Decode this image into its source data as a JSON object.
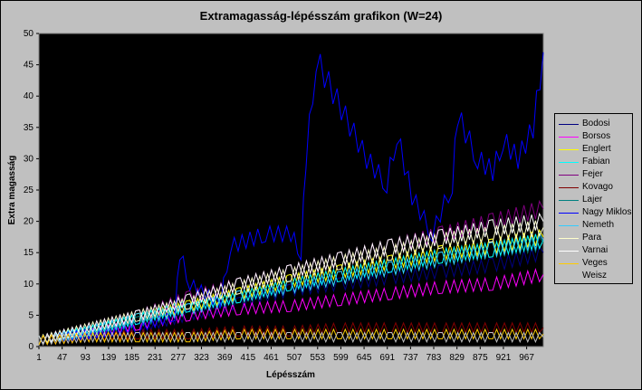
{
  "chart_data": {
    "type": "line",
    "title": "Extramagasság-lépésszám grafikon (W=24)",
    "xlabel": "Lépésszám",
    "ylabel": "Extra magasság",
    "ylim": [
      0,
      50
    ],
    "yticks": [
      "0",
      "5",
      "10",
      "15",
      "20",
      "25",
      "30",
      "35",
      "40",
      "45",
      "50"
    ],
    "xticks": [
      "1",
      "47",
      "93",
      "139",
      "185",
      "231",
      "277",
      "323",
      "369",
      "415",
      "461",
      "507",
      "553",
      "599",
      "645",
      "691",
      "737",
      "783",
      "829",
      "875",
      "921",
      "967"
    ],
    "xrange": [
      1,
      1000
    ],
    "grid": false,
    "legend_position": "right",
    "series": [
      {
        "name": "Bodosi",
        "color": "#000080",
        "points": [
          [
            1,
            1
          ],
          [
            100,
            2
          ],
          [
            200,
            3
          ],
          [
            300,
            5
          ],
          [
            400,
            7
          ],
          [
            500,
            9
          ],
          [
            600,
            10
          ],
          [
            700,
            11
          ],
          [
            800,
            12
          ],
          [
            900,
            13
          ],
          [
            1000,
            15
          ]
        ]
      },
      {
        "name": "Borsos",
        "color": "#ff00ff",
        "points": [
          [
            1,
            1
          ],
          [
            100,
            2
          ],
          [
            200,
            3.5
          ],
          [
            300,
            5
          ],
          [
            400,
            6
          ],
          [
            500,
            6.5
          ],
          [
            600,
            7.5
          ],
          [
            700,
            8.5
          ],
          [
            800,
            9.5
          ],
          [
            900,
            10
          ],
          [
            1000,
            11.5
          ]
        ]
      },
      {
        "name": "Englert",
        "color": "#ffff00",
        "points": [
          [
            1,
            1
          ],
          [
            100,
            2.5
          ],
          [
            200,
            4.5
          ],
          [
            300,
            6.5
          ],
          [
            400,
            8.5
          ],
          [
            500,
            10.5
          ],
          [
            600,
            12
          ],
          [
            700,
            13.5
          ],
          [
            800,
            15
          ],
          [
            900,
            16
          ],
          [
            1000,
            17.5
          ]
        ]
      },
      {
        "name": "Fabian",
        "color": "#00ffff",
        "points": [
          [
            1,
            1
          ],
          [
            100,
            2.5
          ],
          [
            200,
            4.5
          ],
          [
            300,
            6.5
          ],
          [
            400,
            8
          ],
          [
            500,
            10
          ],
          [
            600,
            11.5
          ],
          [
            700,
            13
          ],
          [
            800,
            14.5
          ],
          [
            900,
            15.5
          ],
          [
            1000,
            17
          ]
        ]
      },
      {
        "name": "Fejer",
        "color": "#800080",
        "points": [
          [
            1,
            1
          ],
          [
            100,
            3
          ],
          [
            200,
            5
          ],
          [
            300,
            8
          ],
          [
            400,
            10
          ],
          [
            500,
            12
          ],
          [
            600,
            14
          ],
          [
            700,
            16
          ],
          [
            800,
            18
          ],
          [
            900,
            20
          ],
          [
            1000,
            22
          ]
        ]
      },
      {
        "name": "Kovago",
        "color": "#800000",
        "points": [
          [
            1,
            1
          ],
          [
            100,
            1.5
          ],
          [
            200,
            2
          ],
          [
            300,
            2
          ],
          [
            400,
            2.5
          ],
          [
            500,
            2.5
          ],
          [
            600,
            3
          ],
          [
            700,
            3
          ],
          [
            800,
            3
          ],
          [
            900,
            3
          ],
          [
            1000,
            3
          ]
        ]
      },
      {
        "name": "Lajer",
        "color": "#008080",
        "points": [
          [
            1,
            1
          ],
          [
            100,
            2.5
          ],
          [
            200,
            4
          ],
          [
            300,
            6
          ],
          [
            400,
            8
          ],
          [
            500,
            9.5
          ],
          [
            600,
            11
          ],
          [
            700,
            12.5
          ],
          [
            800,
            14
          ],
          [
            900,
            15.5
          ],
          [
            1000,
            16.5
          ]
        ]
      },
      {
        "name": "Nagy Miklos",
        "color": "#0000ff",
        "points": [
          [
            1,
            1
          ],
          [
            100,
            2
          ],
          [
            200,
            3
          ],
          [
            270,
            5
          ],
          [
            280,
            15
          ],
          [
            300,
            10
          ],
          [
            360,
            7
          ],
          [
            380,
            16
          ],
          [
            450,
            18
          ],
          [
            500,
            18
          ],
          [
            520,
            15
          ],
          [
            530,
            30
          ],
          [
            550,
            46
          ],
          [
            600,
            38
          ],
          [
            650,
            30
          ],
          [
            690,
            26
          ],
          [
            710,
            34
          ],
          [
            740,
            24
          ],
          [
            780,
            18
          ],
          [
            820,
            26
          ],
          [
            830,
            37
          ],
          [
            870,
            30
          ],
          [
            900,
            28
          ],
          [
            920,
            33
          ],
          [
            950,
            30
          ],
          [
            980,
            35
          ],
          [
            1000,
            47
          ]
        ]
      },
      {
        "name": "Nemeth",
        "color": "#33ccff",
        "points": [
          [
            1,
            1
          ],
          [
            100,
            2.5
          ],
          [
            200,
            4.5
          ],
          [
            300,
            6
          ],
          [
            400,
            8
          ],
          [
            500,
            9.5
          ],
          [
            600,
            11
          ],
          [
            700,
            12.5
          ],
          [
            800,
            14
          ],
          [
            900,
            15.5
          ],
          [
            1000,
            17
          ]
        ]
      },
      {
        "name": "Para",
        "color": "#ffffcc",
        "points": [
          [
            1,
            1
          ],
          [
            100,
            3
          ],
          [
            200,
            5
          ],
          [
            300,
            7
          ],
          [
            400,
            9.5
          ],
          [
            500,
            11.5
          ],
          [
            600,
            13.5
          ],
          [
            700,
            15
          ],
          [
            800,
            17
          ],
          [
            900,
            18
          ],
          [
            1000,
            19
          ]
        ]
      },
      {
        "name": "Varnai",
        "color": "#ffffff",
        "points": [
          [
            1,
            1
          ],
          [
            100,
            3
          ],
          [
            200,
            5
          ],
          [
            300,
            7.5
          ],
          [
            400,
            10
          ],
          [
            500,
            12
          ],
          [
            600,
            14
          ],
          [
            700,
            16
          ],
          [
            800,
            17.5
          ],
          [
            900,
            19
          ],
          [
            1000,
            20
          ]
        ]
      },
      {
        "name": "Veges",
        "color": "#ffcc00",
        "points": [
          [
            1,
            1
          ],
          [
            100,
            1.5
          ],
          [
            200,
            1.5
          ],
          [
            300,
            1.5
          ],
          [
            400,
            2
          ],
          [
            500,
            2
          ],
          [
            600,
            2
          ],
          [
            700,
            2
          ],
          [
            800,
            2
          ],
          [
            900,
            2
          ],
          [
            1000,
            2
          ]
        ]
      },
      {
        "name": "Weisz",
        "color": "#c0c0c0",
        "points": [
          [
            1,
            1
          ],
          [
            100,
            1.5
          ],
          [
            200,
            1.5
          ],
          [
            300,
            1.5
          ],
          [
            400,
            1.5
          ],
          [
            500,
            1.5
          ],
          [
            600,
            1.5
          ],
          [
            700,
            1.5
          ],
          [
            800,
            1.5
          ],
          [
            900,
            1.5
          ],
          [
            1000,
            1.5
          ]
        ]
      }
    ]
  }
}
